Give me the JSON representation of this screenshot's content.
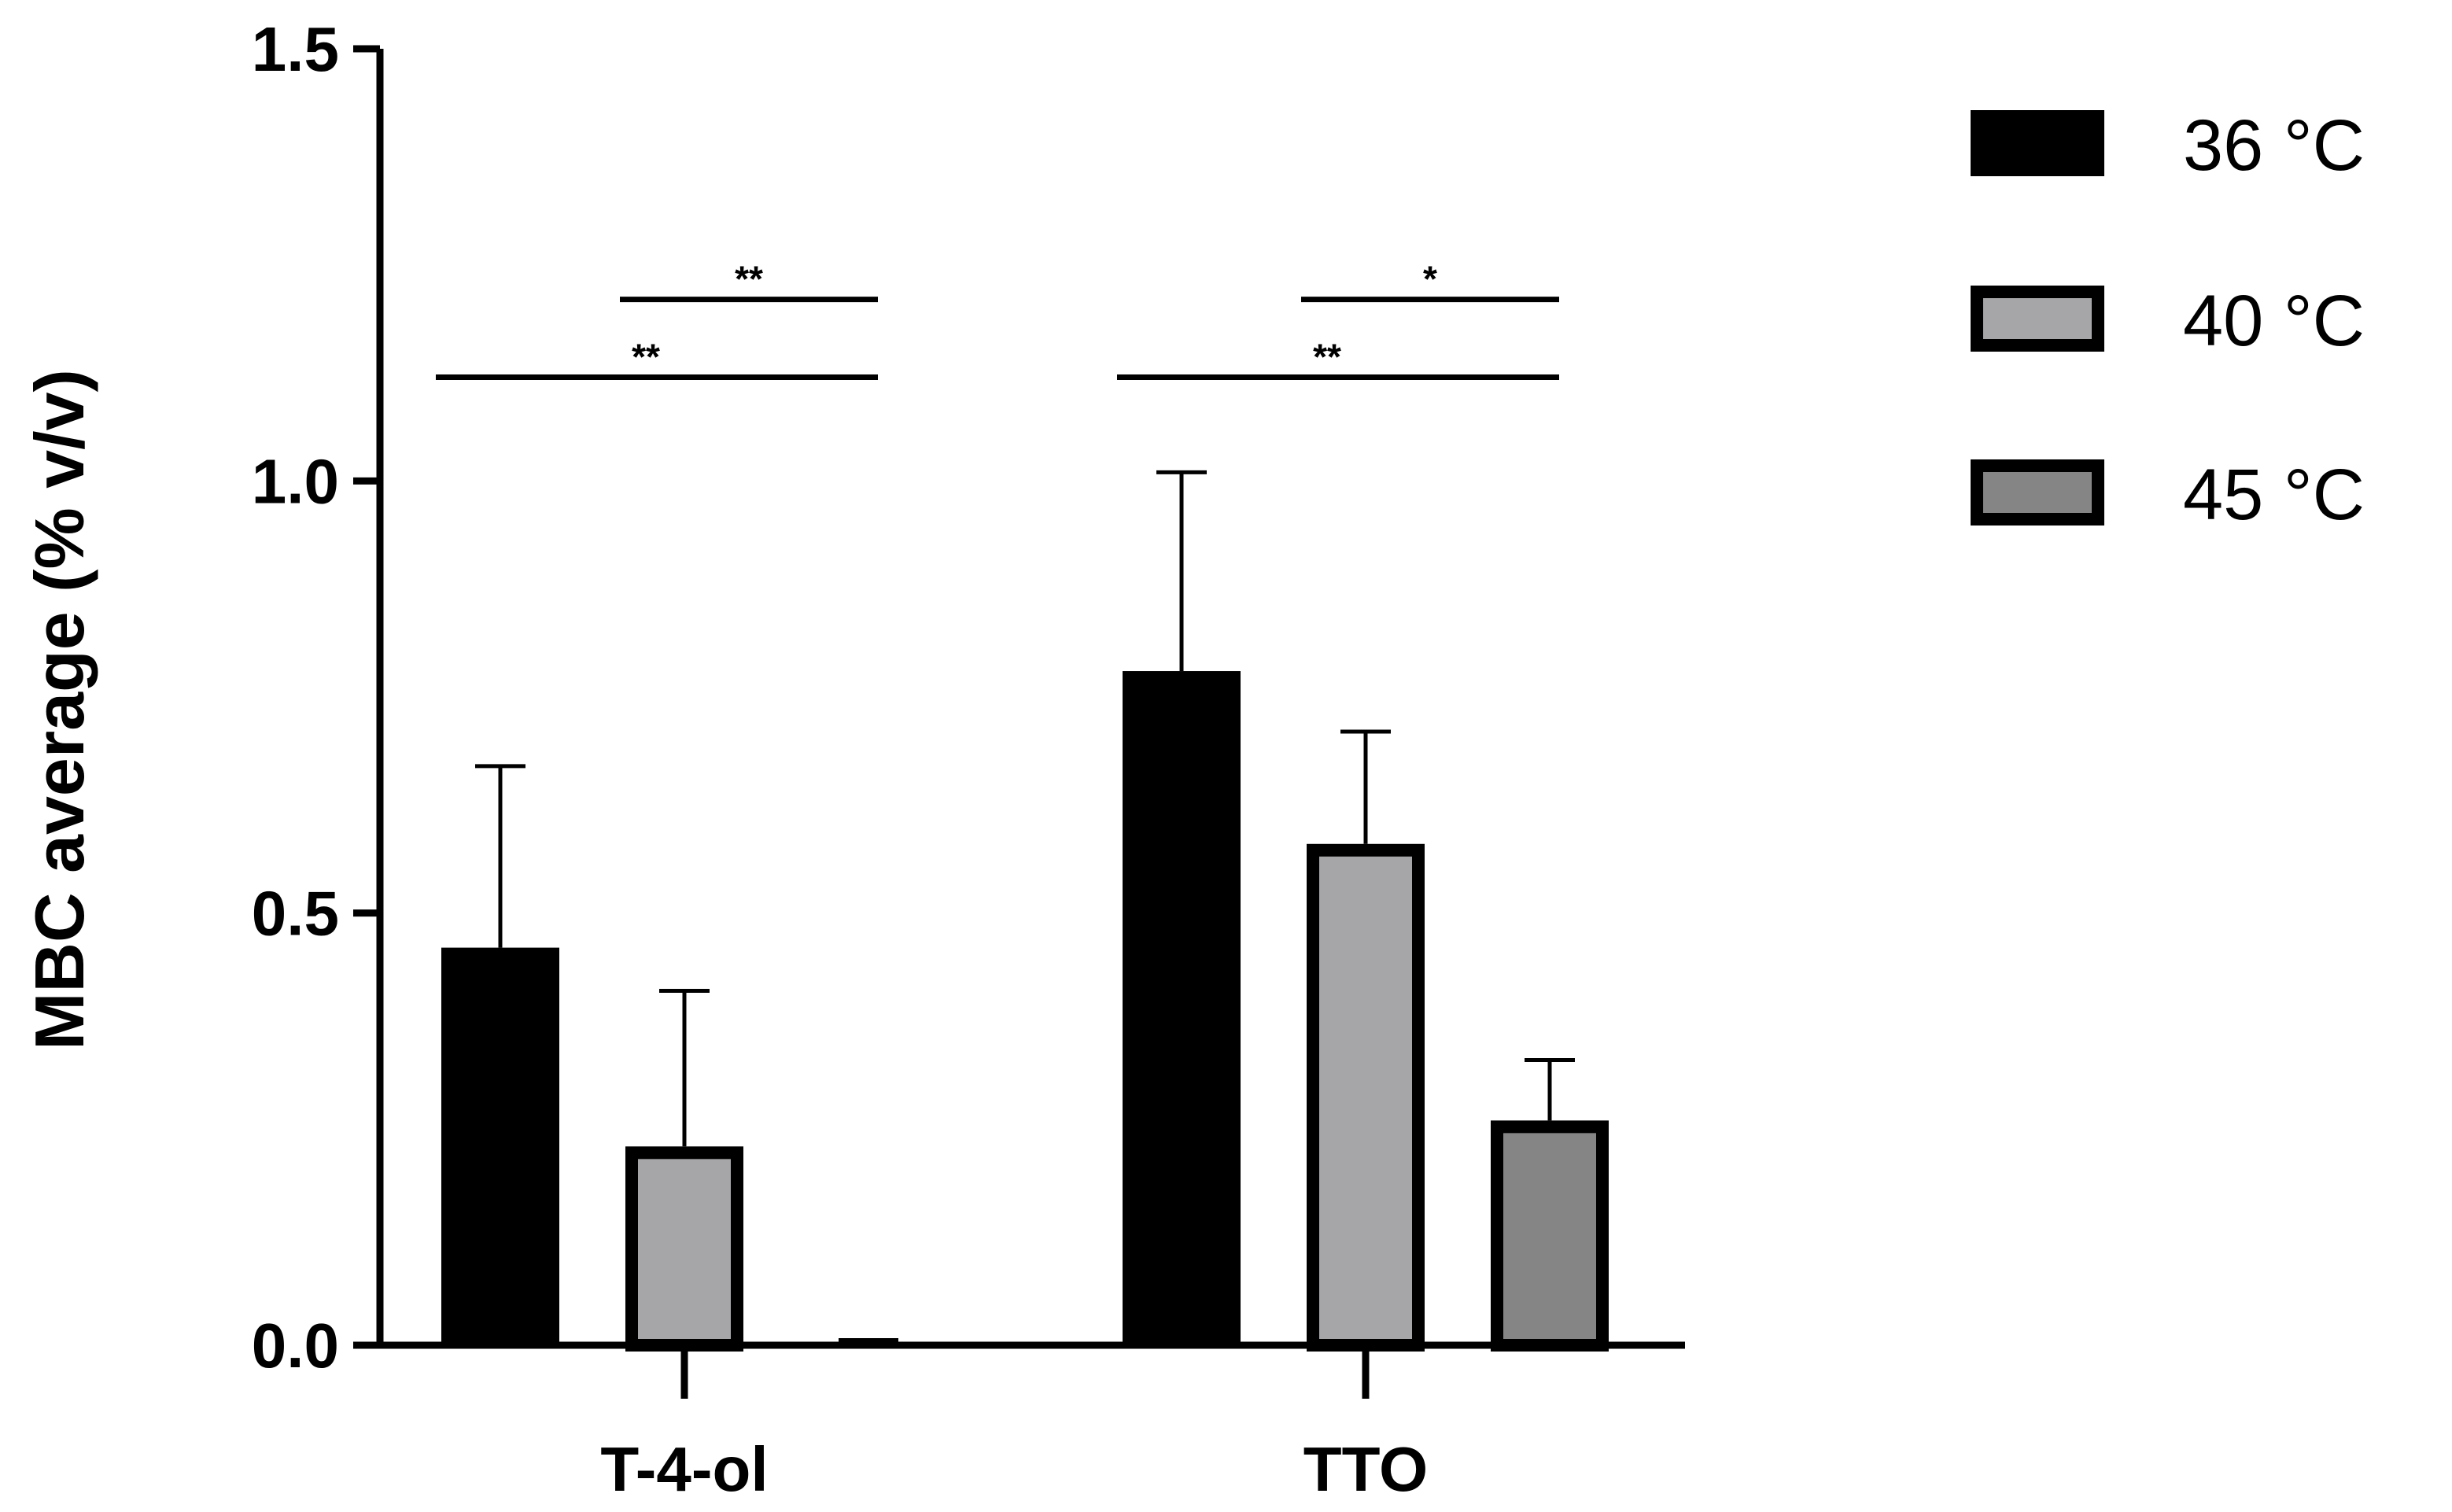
{
  "chart_data": {
    "type": "bar",
    "title": "",
    "xlabel": "",
    "ylabel": "MBC average (% v/v)",
    "ylim": [
      0,
      1.5
    ],
    "yticks": [
      "0.0",
      "0.5",
      "1.0",
      "1.5"
    ],
    "categories": [
      "T-4-ol",
      "TTO"
    ],
    "series": [
      {
        "name": "36 °C",
        "color": "#000000",
        "values": [
          0.46,
          0.78
        ],
        "errors": [
          0.21,
          0.23
        ]
      },
      {
        "name": "40 °C",
        "color": "#a6a6a9",
        "values": [
          0.23,
          0.58
        ],
        "errors": [
          0.18,
          0.13
        ]
      },
      {
        "name": "45 °C",
        "color": "#858585",
        "values": [
          0.0,
          0.26
        ],
        "errors": [
          0.0,
          0.07
        ]
      }
    ],
    "legend_position": "top-right",
    "significance": [
      {
        "category": 0,
        "from_series": 1,
        "to_series": 2,
        "label": "**",
        "y": 1.21
      },
      {
        "category": 0,
        "from_series": 0,
        "to_series": 2,
        "label": "**",
        "y": 1.12
      },
      {
        "category": 1,
        "from_series": 1,
        "to_series": 2,
        "label": "*",
        "y": 1.21
      },
      {
        "category": 1,
        "from_series": 0,
        "to_series": 2,
        "label": "**",
        "y": 1.12
      }
    ]
  }
}
